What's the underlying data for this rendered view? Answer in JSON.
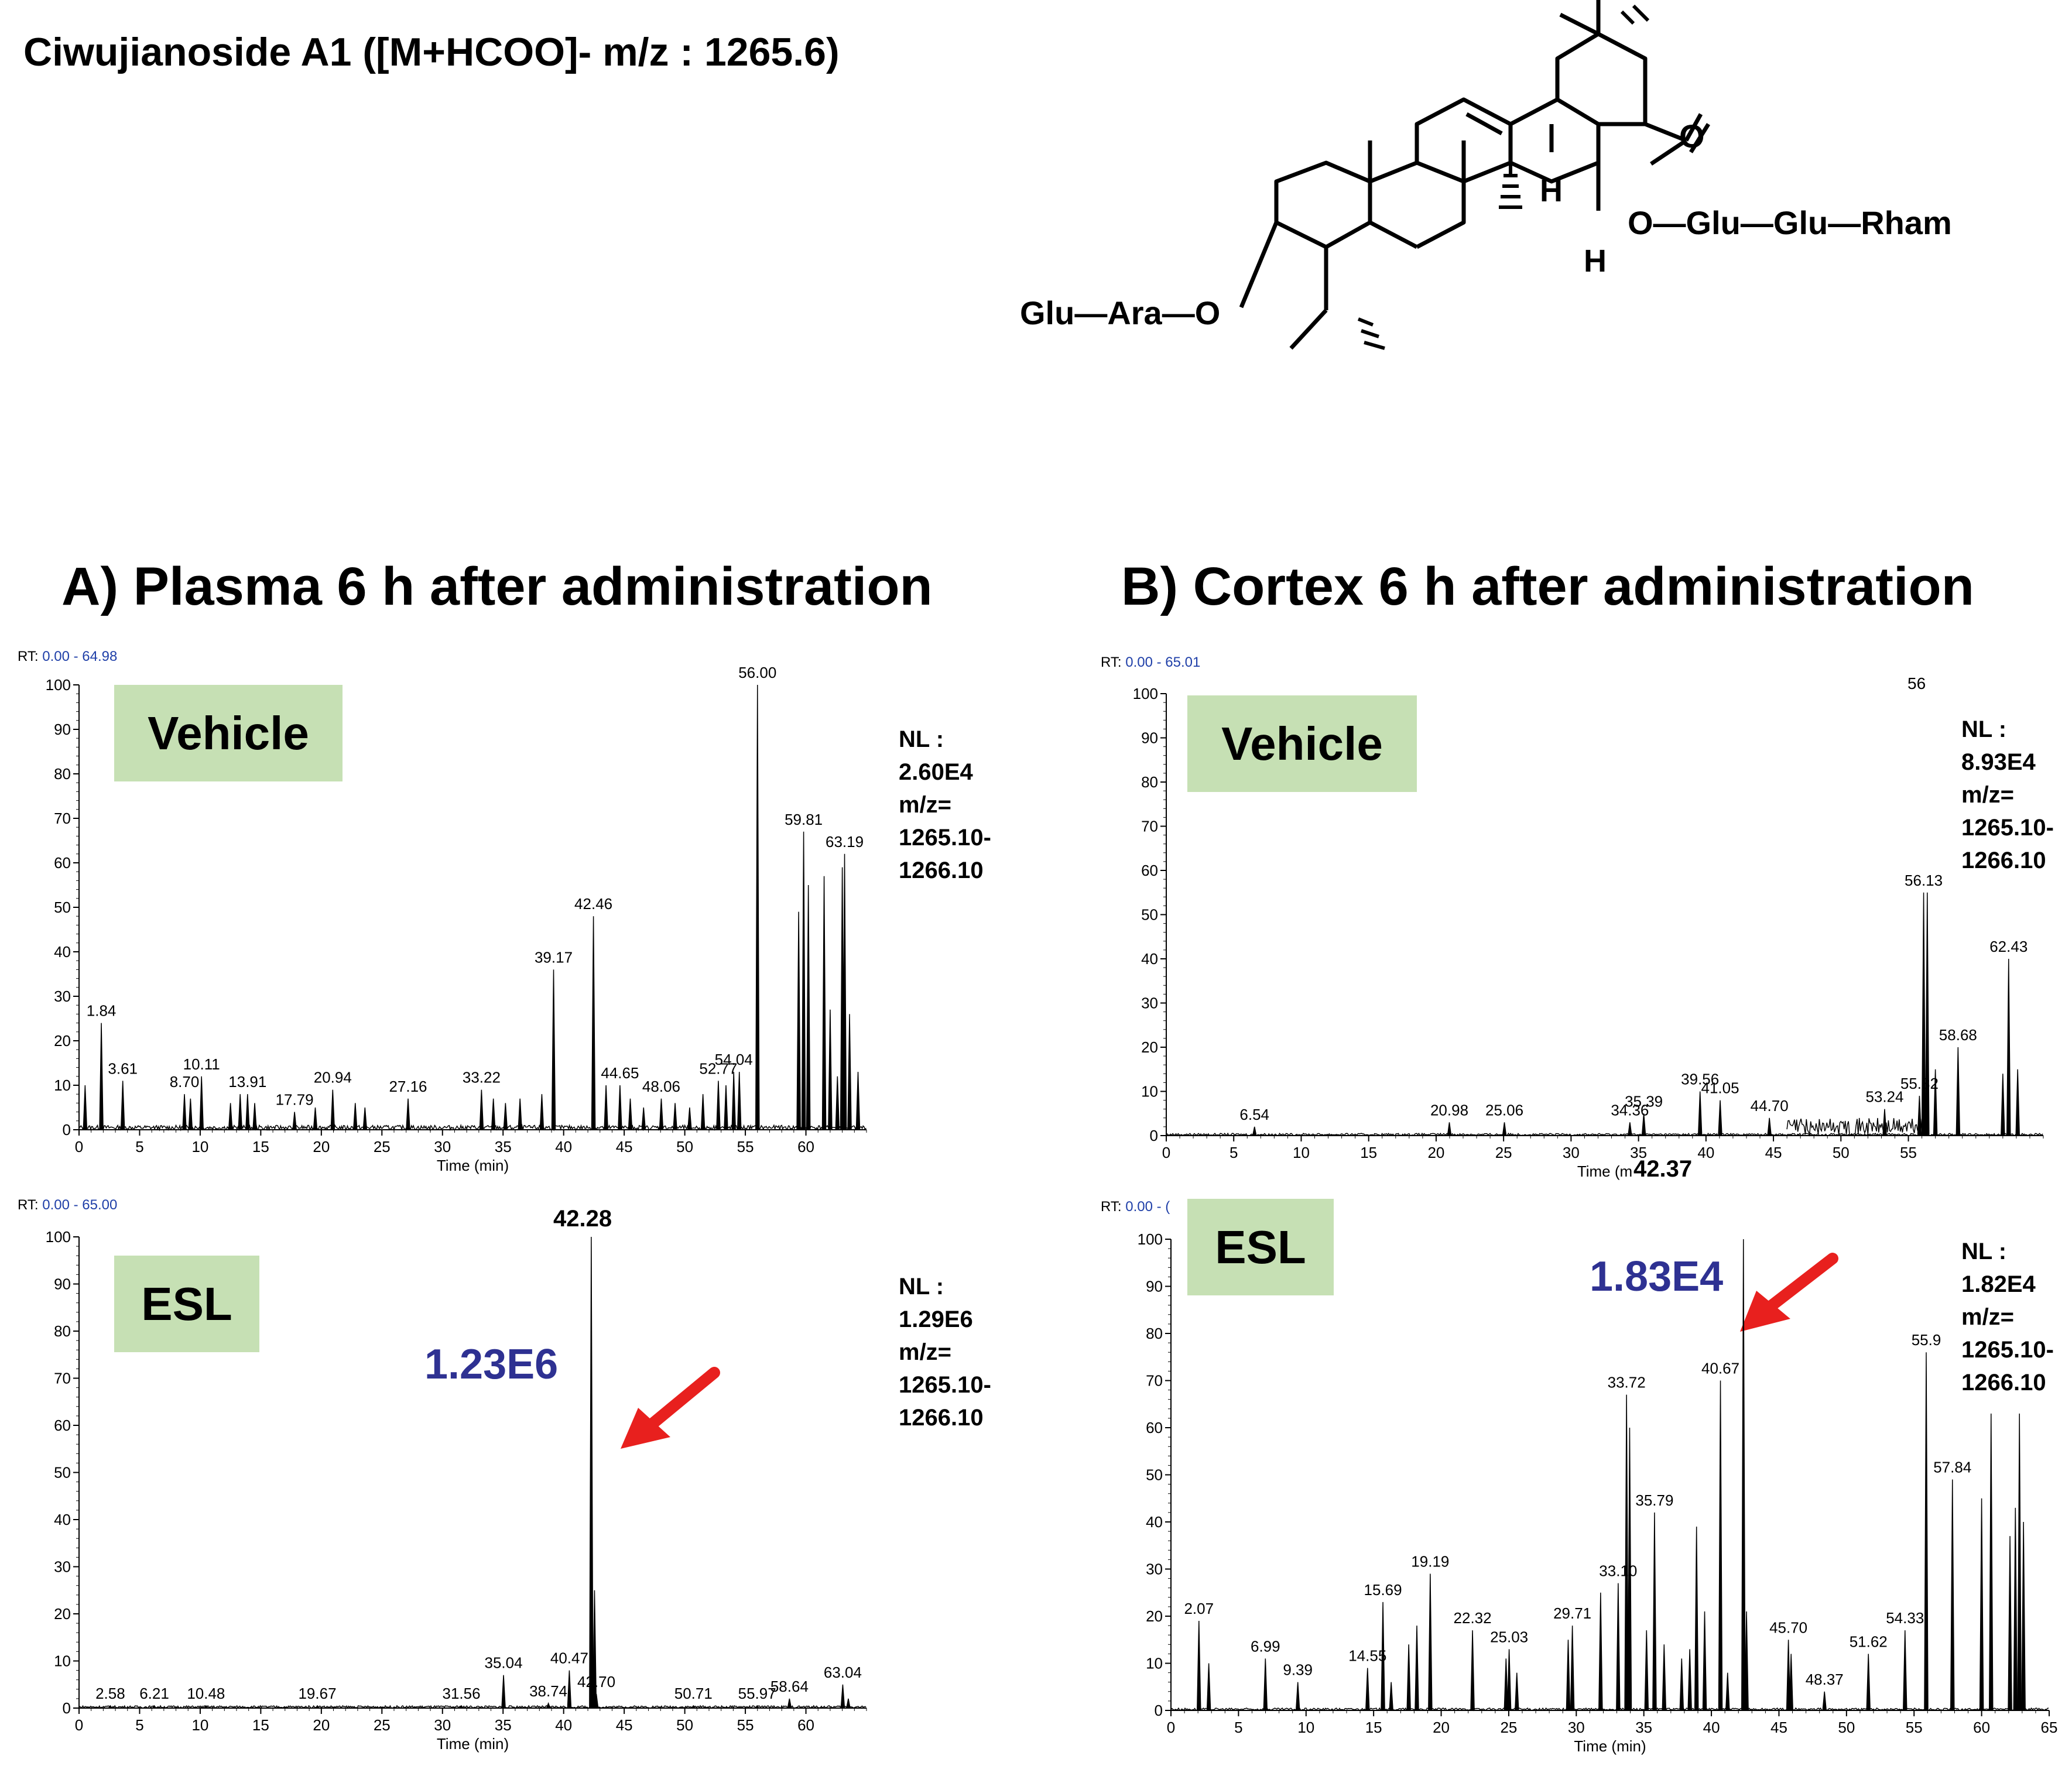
{
  "compound_title": "Ciwujianoside A1 ([M+HCOO]- m/z :  1265.6)",
  "structure": {
    "sugar_left": "Glu—Ara—O",
    "ester": "O—Glu—Glu—Rham",
    "oxygen": "O",
    "h_label_1": "H",
    "h_label_2": "H"
  },
  "section_a_title": "A) Plasma 6 h after administration",
  "section_b_title": "B) Cortex 6 h after administration",
  "panels": {
    "a_vehicle": {
      "rt_prefix": "RT: ",
      "rt_range": "0.00 - 64.98",
      "condition": "Vehicle",
      "nl_lines": [
        "NL :",
        "2.60E4",
        "m/z=",
        "1265.10-",
        "1266.10"
      ]
    },
    "a_esl": {
      "rt_prefix": "RT: ",
      "rt_range": "0.00 - 65.00",
      "condition": "ESL",
      "nl_lines": [
        "NL :",
        "1.29E6",
        "m/z=",
        "1265.10-",
        "1266.10"
      ],
      "highlight_value": "1.23E6",
      "highlight_peak_label": "42.28"
    },
    "b_vehicle": {
      "rt_prefix": "RT: ",
      "rt_range": "0.00 - 65.01",
      "condition": "Vehicle",
      "nl_lines": [
        "NL :",
        "8.93E4",
        "m/z=",
        "1265.10-",
        "1266.10"
      ],
      "top_label": "56"
    },
    "b_esl": {
      "rt_prefix": "RT: ",
      "rt_range": "0.00 - (",
      "condition": "ESL",
      "nl_lines": [
        "NL :",
        "1.82E4",
        "m/z=",
        "1265.10-",
        "1266.10"
      ],
      "highlight_value": "1.83E4",
      "highlight_peak_label": "42.37"
    }
  },
  "chart_data": [
    {
      "id": "a_vehicle",
      "type": "line",
      "xlabel": "Time (min)",
      "ylabel": "",
      "xlim": [
        0,
        65
      ],
      "ylim": [
        0,
        100
      ],
      "xticks": [
        0,
        5,
        10,
        15,
        20,
        25,
        30,
        35,
        40,
        45,
        50,
        55,
        60
      ],
      "yticks": [
        0,
        10,
        20,
        30,
        40,
        50,
        60,
        70,
        80,
        90,
        100
      ],
      "peaks": [
        {
          "x": 0.5,
          "y": 10
        },
        {
          "x": 1.84,
          "y": 24,
          "label": "1.84"
        },
        {
          "x": 3.61,
          "y": 11,
          "label": "3.61"
        },
        {
          "x": 8.7,
          "y": 8,
          "label": "8.70"
        },
        {
          "x": 9.2,
          "y": 7
        },
        {
          "x": 10.11,
          "y": 12,
          "label": "10.11"
        },
        {
          "x": 12.5,
          "y": 6
        },
        {
          "x": 13.3,
          "y": 8
        },
        {
          "x": 13.91,
          "y": 8,
          "label": "13.91"
        },
        {
          "x": 14.5,
          "y": 6
        },
        {
          "x": 17.79,
          "y": 4,
          "label": "17.79"
        },
        {
          "x": 19.5,
          "y": 5
        },
        {
          "x": 20.94,
          "y": 9,
          "label": "20.94"
        },
        {
          "x": 22.8,
          "y": 6
        },
        {
          "x": 23.6,
          "y": 5
        },
        {
          "x": 27.16,
          "y": 7,
          "label": "27.16"
        },
        {
          "x": 33.22,
          "y": 9,
          "label": "33.22"
        },
        {
          "x": 34.2,
          "y": 7
        },
        {
          "x": 35.2,
          "y": 6
        },
        {
          "x": 36.4,
          "y": 7
        },
        {
          "x": 38.2,
          "y": 8
        },
        {
          "x": 39.17,
          "y": 36,
          "label": "39.17"
        },
        {
          "x": 42.46,
          "y": 48,
          "label": "42.46"
        },
        {
          "x": 43.5,
          "y": 10
        },
        {
          "x": 44.65,
          "y": 10,
          "label": "44.65"
        },
        {
          "x": 45.5,
          "y": 7
        },
        {
          "x": 46.6,
          "y": 5
        },
        {
          "x": 48.06,
          "y": 7,
          "label": "48.06"
        },
        {
          "x": 49.2,
          "y": 6
        },
        {
          "x": 50.4,
          "y": 5
        },
        {
          "x": 51.5,
          "y": 8
        },
        {
          "x": 52.77,
          "y": 11,
          "label": "52.77"
        },
        {
          "x": 53.4,
          "y": 10
        },
        {
          "x": 54.04,
          "y": 13,
          "label": "54.04"
        },
        {
          "x": 54.5,
          "y": 13
        },
        {
          "x": 56.0,
          "y": 100,
          "label": "56.00"
        },
        {
          "x": 59.4,
          "y": 49
        },
        {
          "x": 59.81,
          "y": 67,
          "label": "59.81"
        },
        {
          "x": 60.2,
          "y": 55
        },
        {
          "x": 61.5,
          "y": 57
        },
        {
          "x": 62.0,
          "y": 27
        },
        {
          "x": 62.6,
          "y": 12
        },
        {
          "x": 63.0,
          "y": 59
        },
        {
          "x": 63.19,
          "y": 62,
          "label": "63.19"
        },
        {
          "x": 63.6,
          "y": 26
        },
        {
          "x": 64.3,
          "y": 13
        }
      ],
      "baseline_noise": [
        [
          0,
          65,
          1
        ]
      ]
    },
    {
      "id": "a_esl",
      "type": "line",
      "xlabel": "Time (min)",
      "ylabel": "",
      "xlim": [
        0,
        65
      ],
      "ylim": [
        0,
        100
      ],
      "xticks": [
        0,
        5,
        10,
        15,
        20,
        25,
        30,
        35,
        40,
        45,
        50,
        55,
        60
      ],
      "yticks": [
        0,
        10,
        20,
        30,
        40,
        50,
        60,
        70,
        80,
        90,
        100
      ],
      "peaks": [
        {
          "x": 2.58,
          "y": 0.5,
          "label": "2.58"
        },
        {
          "x": 6.21,
          "y": 0.5,
          "label": "6.21"
        },
        {
          "x": 10.48,
          "y": 0.5,
          "label": "10.48"
        },
        {
          "x": 19.67,
          "y": 0.5,
          "label": "19.67"
        },
        {
          "x": 31.56,
          "y": 0.5,
          "label": "31.56"
        },
        {
          "x": 35.04,
          "y": 7,
          "label": "35.04"
        },
        {
          "x": 38.74,
          "y": 1,
          "label": "38.74"
        },
        {
          "x": 40.47,
          "y": 8,
          "label": "40.47"
        },
        {
          "x": 42.28,
          "y": 100
        },
        {
          "x": 42.55,
          "y": 25
        },
        {
          "x": 42.7,
          "y": 3,
          "label": "42.70"
        },
        {
          "x": 50.71,
          "y": 0.5,
          "label": "50.71"
        },
        {
          "x": 55.97,
          "y": 0.5,
          "label": "55.97"
        },
        {
          "x": 58.64,
          "y": 2,
          "label": "58.64"
        },
        {
          "x": 63.04,
          "y": 5,
          "label": "63.04"
        },
        {
          "x": 63.5,
          "y": 2
        }
      ],
      "baseline_noise": [
        [
          0,
          65,
          0.5
        ]
      ]
    },
    {
      "id": "b_vehicle",
      "type": "line",
      "xlabel": "Time (m",
      "ylabel": "",
      "xlim": [
        0,
        65
      ],
      "ylim": [
        0,
        100
      ],
      "xticks": [
        0,
        5,
        10,
        15,
        20,
        25,
        30,
        35,
        40,
        45,
        50,
        55
      ],
      "yticks": [
        0,
        10,
        20,
        30,
        40,
        50,
        60,
        70,
        80,
        90,
        100
      ],
      "peaks": [
        {
          "x": 6.54,
          "y": 2,
          "label": "6.54"
        },
        {
          "x": 20.98,
          "y": 3,
          "label": "20.98"
        },
        {
          "x": 25.06,
          "y": 3,
          "label": "25.06"
        },
        {
          "x": 34.36,
          "y": 3,
          "label": "34.36"
        },
        {
          "x": 35.39,
          "y": 5,
          "label": "35.39"
        },
        {
          "x": 39.56,
          "y": 10,
          "label": "39.56"
        },
        {
          "x": 41.05,
          "y": 8,
          "label": "41.05"
        },
        {
          "x": 44.7,
          "y": 4,
          "label": "44.70"
        },
        {
          "x": 53.24,
          "y": 6,
          "label": "53.24"
        },
        {
          "x": 55.82,
          "y": 9,
          "label": "55.82"
        },
        {
          "x": 56.13,
          "y": 55,
          "label": "56.13"
        },
        {
          "x": 56.4,
          "y": 55
        },
        {
          "x": 57.0,
          "y": 15
        },
        {
          "x": 58.68,
          "y": 20,
          "label": "58.68"
        },
        {
          "x": 62.0,
          "y": 14
        },
        {
          "x": 62.43,
          "y": 40,
          "label": "62.43"
        },
        {
          "x": 63.1,
          "y": 15
        }
      ],
      "baseline_noise": [
        [
          0,
          65,
          0.5
        ],
        [
          46,
          56,
          4
        ]
      ]
    },
    {
      "id": "b_esl",
      "type": "line",
      "xlabel": "Time (min)",
      "ylabel": "",
      "xlim": [
        0,
        65
      ],
      "ylim": [
        0,
        100
      ],
      "xticks": [
        0,
        5,
        10,
        15,
        20,
        25,
        30,
        35,
        40,
        45,
        50,
        55,
        60,
        65
      ],
      "yticks": [
        0,
        10,
        20,
        30,
        40,
        50,
        60,
        70,
        80,
        90,
        100
      ],
      "peaks": [
        {
          "x": 2.07,
          "y": 19,
          "label": "2.07"
        },
        {
          "x": 2.8,
          "y": 10
        },
        {
          "x": 6.99,
          "y": 11,
          "label": "6.99"
        },
        {
          "x": 9.39,
          "y": 6,
          "label": "9.39"
        },
        {
          "x": 14.55,
          "y": 9,
          "label": "14.55"
        },
        {
          "x": 15.69,
          "y": 23,
          "label": "15.69"
        },
        {
          "x": 16.3,
          "y": 6
        },
        {
          "x": 17.6,
          "y": 14
        },
        {
          "x": 18.2,
          "y": 18
        },
        {
          "x": 19.19,
          "y": 29,
          "label": "19.19"
        },
        {
          "x": 22.32,
          "y": 17,
          "label": "22.32"
        },
        {
          "x": 24.8,
          "y": 11
        },
        {
          "x": 25.03,
          "y": 13,
          "label": "25.03"
        },
        {
          "x": 25.6,
          "y": 8
        },
        {
          "x": 29.4,
          "y": 15
        },
        {
          "x": 29.71,
          "y": 18,
          "label": "29.71"
        },
        {
          "x": 31.8,
          "y": 25
        },
        {
          "x": 33.1,
          "y": 27,
          "label": "33.10"
        },
        {
          "x": 33.72,
          "y": 67,
          "label": "33.72"
        },
        {
          "x": 33.95,
          "y": 60
        },
        {
          "x": 35.2,
          "y": 17
        },
        {
          "x": 35.79,
          "y": 42,
          "label": "35.79"
        },
        {
          "x": 36.5,
          "y": 14
        },
        {
          "x": 37.8,
          "y": 11
        },
        {
          "x": 38.4,
          "y": 13
        },
        {
          "x": 38.9,
          "y": 39
        },
        {
          "x": 39.5,
          "y": 21
        },
        {
          "x": 40.67,
          "y": 70,
          "label": "40.67"
        },
        {
          "x": 41.2,
          "y": 8
        },
        {
          "x": 42.37,
          "y": 100
        },
        {
          "x": 42.6,
          "y": 21
        },
        {
          "x": 45.7,
          "y": 15,
          "label": "45.70"
        },
        {
          "x": 45.9,
          "y": 12
        },
        {
          "x": 48.37,
          "y": 4,
          "label": "48.37"
        },
        {
          "x": 51.62,
          "y": 12,
          "label": "51.62"
        },
        {
          "x": 54.33,
          "y": 17,
          "label": "54.33"
        },
        {
          "x": 55.9,
          "y": 76,
          "label": "55.9"
        },
        {
          "x": 57.84,
          "y": 49,
          "label": "57.84"
        },
        {
          "x": 60.0,
          "y": 45
        },
        {
          "x": 60.7,
          "y": 63
        },
        {
          "x": 62.1,
          "y": 37
        },
        {
          "x": 62.5,
          "y": 43
        },
        {
          "x": 62.8,
          "y": 63
        },
        {
          "x": 63.1,
          "y": 40
        }
      ],
      "baseline_noise": [
        [
          0,
          65,
          0.5
        ]
      ]
    }
  ]
}
